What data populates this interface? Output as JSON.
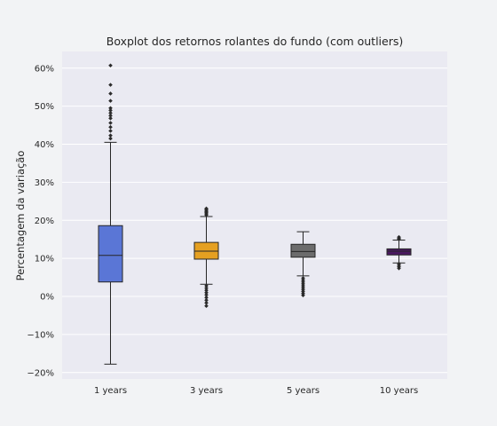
{
  "chart_data": {
    "type": "box",
    "title": "Boxplot dos retornos rolantes do fundo (com outliers)",
    "xlabel": "",
    "ylabel": "Percentagem da variação",
    "ylim": [
      -22,
      64
    ],
    "yticks": [
      -20,
      -10,
      0,
      10,
      20,
      30,
      40,
      50,
      60
    ],
    "ytick_labels": [
      "−20%",
      "−10%",
      "0%",
      "10%",
      "20%",
      "30%",
      "40%",
      "50%",
      "60%"
    ],
    "grid": true,
    "categories": [
      "1 years",
      "3 years",
      "5 years",
      "10 years"
    ],
    "colors": [
      "#5a76d6",
      "#e5a021",
      "#6c6c6c",
      "#4a1960"
    ],
    "boxes": [
      {
        "category": "1 years",
        "whislo": -17.8,
        "q1": 3.8,
        "med": 10.8,
        "q3": 18.6,
        "whishi": 40.5,
        "fliers": [
          41.5,
          42.3,
          43.5,
          44.5,
          45.6,
          46.8,
          47.5,
          48.2,
          48.9,
          49.5,
          51.4,
          53.3,
          55.6,
          60.7
        ]
      },
      {
        "category": "3 years",
        "whislo": 3.2,
        "q1": 9.8,
        "med": 11.9,
        "q3": 14.2,
        "whishi": 21.0,
        "fliers": [
          21.4,
          21.7,
          22.0,
          22.3,
          22.6,
          22.9,
          23.1,
          2.8,
          2.2,
          1.6,
          1.0,
          0.4,
          -0.3,
          -1.0,
          -1.7,
          -2.5
        ]
      },
      {
        "category": "5 years",
        "whislo": 5.4,
        "q1": 10.3,
        "med": 11.8,
        "q3": 13.7,
        "whishi": 17.0,
        "fliers": [
          4.8,
          4.3,
          3.8,
          3.3,
          2.8,
          2.3,
          1.8,
          1.3,
          0.8,
          0.3
        ]
      },
      {
        "category": "10 years",
        "whislo": 8.8,
        "q1": 10.9,
        "med": 11.9,
        "q3": 12.5,
        "whishi": 14.8,
        "fliers": [
          15.0,
          15.3,
          15.6,
          8.6,
          8.2,
          7.8,
          7.4
        ]
      }
    ]
  }
}
